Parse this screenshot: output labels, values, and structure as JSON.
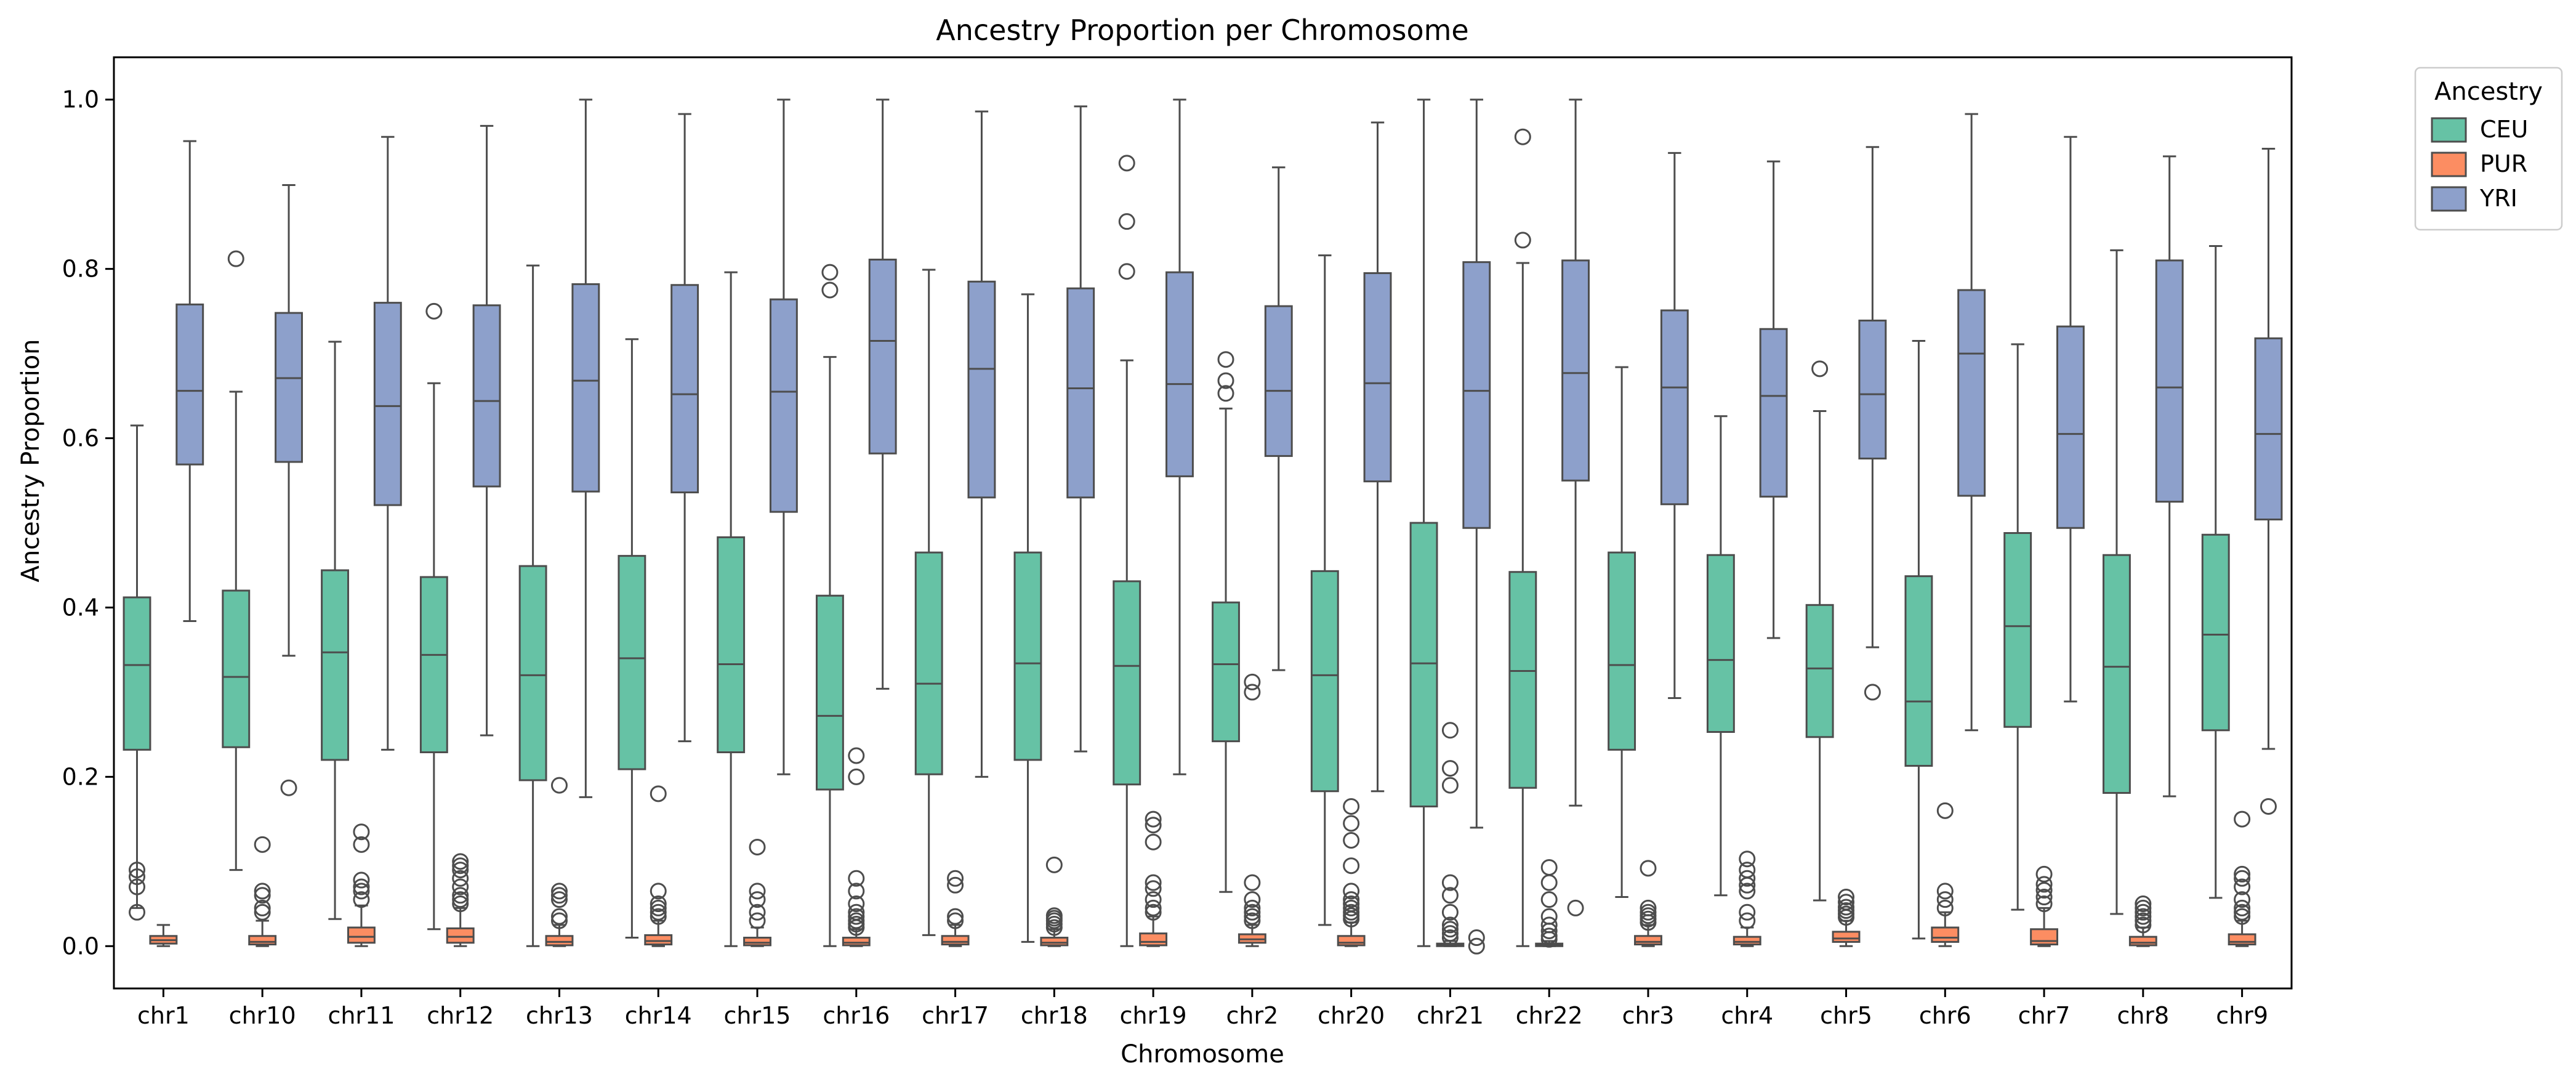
{
  "chart_data": {
    "type": "box",
    "title": "Ancestry Proportion per Chromosome",
    "xlabel": "Chromosome",
    "ylabel": "Ancestry Proportion",
    "ylim": [
      -0.05,
      1.05
    ],
    "yticks": [
      "0.0",
      "0.2",
      "0.4",
      "0.6",
      "0.8",
      "1.0"
    ],
    "grid": false,
    "legend": {
      "title": "Ancestry",
      "placement": "outside-top-right"
    },
    "categories": [
      "chr1",
      "chr10",
      "chr11",
      "chr12",
      "chr13",
      "chr14",
      "chr15",
      "chr16",
      "chr17",
      "chr18",
      "chr19",
      "chr2",
      "chr20",
      "chr21",
      "chr22",
      "chr3",
      "chr4",
      "chr5",
      "chr6",
      "chr7",
      "chr8",
      "chr9"
    ],
    "series": [
      {
        "name": "CEU",
        "color": "#66c2a5",
        "boxes": [
          {
            "lo": 0.045,
            "q1": 0.232,
            "med": 0.332,
            "q3": 0.412,
            "hi": 0.615,
            "out": [
              0.082,
              0.09,
              0.07,
              0.04
            ]
          },
          {
            "lo": 0.09,
            "q1": 0.235,
            "med": 0.318,
            "q3": 0.42,
            "hi": 0.655,
            "out": [
              0.812
            ]
          },
          {
            "lo": 0.032,
            "q1": 0.22,
            "med": 0.347,
            "q3": 0.444,
            "hi": 0.714,
            "out": []
          },
          {
            "lo": 0.02,
            "q1": 0.229,
            "med": 0.344,
            "q3": 0.436,
            "hi": 0.665,
            "out": [
              0.75
            ]
          },
          {
            "lo": 0.0,
            "q1": 0.196,
            "med": 0.32,
            "q3": 0.449,
            "hi": 0.804,
            "out": []
          },
          {
            "lo": 0.01,
            "q1": 0.209,
            "med": 0.34,
            "q3": 0.461,
            "hi": 0.717,
            "out": []
          },
          {
            "lo": 0.0,
            "q1": 0.229,
            "med": 0.333,
            "q3": 0.483,
            "hi": 0.796,
            "out": []
          },
          {
            "lo": 0.0,
            "q1": 0.185,
            "med": 0.272,
            "q3": 0.414,
            "hi": 0.696,
            "out": [
              0.775,
              0.796
            ]
          },
          {
            "lo": 0.013,
            "q1": 0.203,
            "med": 0.31,
            "q3": 0.465,
            "hi": 0.799,
            "out": []
          },
          {
            "lo": 0.005,
            "q1": 0.22,
            "med": 0.334,
            "q3": 0.465,
            "hi": 0.77,
            "out": []
          },
          {
            "lo": 0.0,
            "q1": 0.191,
            "med": 0.331,
            "q3": 0.431,
            "hi": 0.692,
            "out": [
              0.797,
              0.856,
              0.925
            ]
          },
          {
            "lo": 0.064,
            "q1": 0.242,
            "med": 0.333,
            "q3": 0.406,
            "hi": 0.635,
            "out": [
              0.653,
              0.668,
              0.693
            ]
          },
          {
            "lo": 0.025,
            "q1": 0.183,
            "med": 0.32,
            "q3": 0.443,
            "hi": 0.816,
            "out": []
          },
          {
            "lo": 0.0,
            "q1": 0.165,
            "med": 0.334,
            "q3": 0.5,
            "hi": 1.0,
            "out": []
          },
          {
            "lo": 0.0,
            "q1": 0.187,
            "med": 0.325,
            "q3": 0.442,
            "hi": 0.807,
            "out": [
              0.834,
              0.956
            ]
          },
          {
            "lo": 0.058,
            "q1": 0.232,
            "med": 0.332,
            "q3": 0.465,
            "hi": 0.684,
            "out": []
          },
          {
            "lo": 0.06,
            "q1": 0.253,
            "med": 0.338,
            "q3": 0.462,
            "hi": 0.626,
            "out": []
          },
          {
            "lo": 0.054,
            "q1": 0.247,
            "med": 0.328,
            "q3": 0.403,
            "hi": 0.632,
            "out": [
              0.682
            ]
          },
          {
            "lo": 0.009,
            "q1": 0.213,
            "med": 0.289,
            "q3": 0.437,
            "hi": 0.715,
            "out": []
          },
          {
            "lo": 0.043,
            "q1": 0.259,
            "med": 0.378,
            "q3": 0.488,
            "hi": 0.711,
            "out": []
          },
          {
            "lo": 0.038,
            "q1": 0.181,
            "med": 0.33,
            "q3": 0.462,
            "hi": 0.822,
            "out": []
          },
          {
            "lo": 0.057,
            "q1": 0.255,
            "med": 0.368,
            "q3": 0.486,
            "hi": 0.827,
            "out": []
          }
        ]
      },
      {
        "name": "PUR",
        "color": "#fc8d62",
        "boxes": [
          {
            "lo": 0.0,
            "q1": 0.003,
            "med": 0.007,
            "q3": 0.012,
            "hi": 0.025,
            "out": []
          },
          {
            "lo": 0.0,
            "q1": 0.002,
            "med": 0.005,
            "q3": 0.012,
            "hi": 0.03,
            "out": [
              0.04,
              0.045,
              0.06,
              0.065,
              0.12
            ]
          },
          {
            "lo": 0.0,
            "q1": 0.004,
            "med": 0.011,
            "q3": 0.022,
            "hi": 0.048,
            "out": [
              0.055,
              0.065,
              0.07,
              0.078,
              0.12,
              0.135
            ]
          },
          {
            "lo": 0.0,
            "q1": 0.004,
            "med": 0.011,
            "q3": 0.021,
            "hi": 0.045,
            "out": [
              0.05,
              0.055,
              0.06,
              0.07,
              0.08,
              0.09,
              0.095,
              0.1
            ]
          },
          {
            "lo": 0.0,
            "q1": 0.001,
            "med": 0.005,
            "q3": 0.012,
            "hi": 0.025,
            "out": [
              0.03,
              0.035,
              0.055,
              0.06,
              0.065,
              0.19
            ]
          },
          {
            "lo": 0.0,
            "q1": 0.002,
            "med": 0.006,
            "q3": 0.013,
            "hi": 0.03,
            "out": [
              0.035,
              0.04,
              0.045,
              0.05,
              0.065,
              0.18
            ]
          },
          {
            "lo": 0.0,
            "q1": 0.001,
            "med": 0.004,
            "q3": 0.01,
            "hi": 0.022,
            "out": [
              0.03,
              0.04,
              0.055,
              0.065,
              0.117
            ]
          },
          {
            "lo": 0.0,
            "q1": 0.001,
            "med": 0.004,
            "q3": 0.01,
            "hi": 0.02,
            "out": [
              0.022,
              0.026,
              0.03,
              0.035,
              0.04,
              0.05,
              0.065,
              0.08,
              0.2,
              0.225
            ]
          },
          {
            "lo": 0.0,
            "q1": 0.002,
            "med": 0.005,
            "q3": 0.012,
            "hi": 0.025,
            "out": [
              0.03,
              0.035,
              0.072,
              0.08
            ]
          },
          {
            "lo": 0.0,
            "q1": 0.001,
            "med": 0.004,
            "q3": 0.01,
            "hi": 0.02,
            "out": [
              0.022,
              0.026,
              0.03,
              0.033,
              0.036,
              0.096
            ]
          },
          {
            "lo": 0.0,
            "q1": 0.001,
            "med": 0.005,
            "q3": 0.015,
            "hi": 0.035,
            "out": [
              0.04,
              0.045,
              0.055,
              0.068,
              0.075,
              0.123,
              0.143,
              0.15
            ]
          },
          {
            "lo": 0.0,
            "q1": 0.004,
            "med": 0.008,
            "q3": 0.014,
            "hi": 0.025,
            "out": [
              0.3,
              0.312,
              0.03,
              0.035,
              0.04,
              0.045,
              0.055,
              0.075
            ]
          },
          {
            "lo": 0.0,
            "q1": 0.001,
            "med": 0.004,
            "q3": 0.012,
            "hi": 0.028,
            "out": [
              0.032,
              0.036,
              0.04,
              0.045,
              0.05,
              0.055,
              0.065,
              0.095,
              0.125,
              0.145,
              0.165
            ]
          },
          {
            "lo": 0.0,
            "q1": 0.0,
            "med": 0.001,
            "q3": 0.003,
            "hi": 0.006,
            "out": [
              0.01,
              0.015,
              0.02,
              0.025,
              0.04,
              0.06,
              0.075,
              0.19,
              0.21,
              0.255
            ]
          },
          {
            "lo": 0.0,
            "q1": 0.0,
            "med": 0.001,
            "q3": 0.003,
            "hi": 0.006,
            "out": [
              0.008,
              0.012,
              0.018,
              0.025,
              0.035,
              0.055,
              0.075,
              0.093
            ]
          },
          {
            "lo": 0.0,
            "q1": 0.002,
            "med": 0.005,
            "q3": 0.012,
            "hi": 0.025,
            "out": [
              0.028,
              0.032,
              0.036,
              0.04,
              0.045,
              0.092
            ]
          },
          {
            "lo": 0.0,
            "q1": 0.002,
            "med": 0.005,
            "q3": 0.011,
            "hi": 0.022,
            "out": [
              0.03,
              0.04,
              0.065,
              0.072,
              0.08,
              0.09,
              0.103
            ]
          },
          {
            "lo": 0.0,
            "q1": 0.005,
            "med": 0.009,
            "q3": 0.017,
            "hi": 0.03,
            "out": [
              0.034,
              0.038,
              0.042,
              0.046,
              0.052,
              0.058
            ]
          },
          {
            "lo": 0.0,
            "q1": 0.005,
            "med": 0.01,
            "q3": 0.022,
            "hi": 0.04,
            "out": [
              0.045,
              0.055,
              0.065,
              0.16
            ]
          },
          {
            "lo": 0.0,
            "q1": 0.002,
            "med": 0.006,
            "q3": 0.02,
            "hi": 0.045,
            "out": [
              0.05,
              0.058,
              0.066,
              0.073,
              0.085
            ]
          },
          {
            "lo": 0.0,
            "q1": 0.001,
            "med": 0.004,
            "q3": 0.011,
            "hi": 0.022,
            "out": [
              0.025,
              0.03,
              0.035,
              0.04,
              0.045,
              0.05
            ]
          },
          {
            "lo": 0.0,
            "q1": 0.002,
            "med": 0.005,
            "q3": 0.014,
            "hi": 0.03,
            "out": [
              0.035,
              0.04,
              0.045,
              0.055,
              0.07,
              0.08,
              0.085,
              0.15
            ]
          }
        ]
      },
      {
        "name": "YRI",
        "color": "#8da0cb",
        "boxes": [
          {
            "lo": 0.384,
            "q1": 0.569,
            "med": 0.656,
            "q3": 0.758,
            "hi": 0.951,
            "out": []
          },
          {
            "lo": 0.343,
            "q1": 0.572,
            "med": 0.671,
            "q3": 0.748,
            "hi": 0.899,
            "out": [
              0.187
            ]
          },
          {
            "lo": 0.232,
            "q1": 0.521,
            "med": 0.638,
            "q3": 0.76,
            "hi": 0.956,
            "out": []
          },
          {
            "lo": 0.249,
            "q1": 0.543,
            "med": 0.644,
            "q3": 0.757,
            "hi": 0.969,
            "out": []
          },
          {
            "lo": 0.176,
            "q1": 0.537,
            "med": 0.668,
            "q3": 0.782,
            "hi": 1.0,
            "out": []
          },
          {
            "lo": 0.242,
            "q1": 0.536,
            "med": 0.652,
            "q3": 0.781,
            "hi": 0.983,
            "out": []
          },
          {
            "lo": 0.203,
            "q1": 0.513,
            "med": 0.655,
            "q3": 0.764,
            "hi": 1.0,
            "out": []
          },
          {
            "lo": 0.304,
            "q1": 0.582,
            "med": 0.715,
            "q3": 0.811,
            "hi": 1.0,
            "out": []
          },
          {
            "lo": 0.2,
            "q1": 0.53,
            "med": 0.682,
            "q3": 0.785,
            "hi": 0.986,
            "out": []
          },
          {
            "lo": 0.23,
            "q1": 0.53,
            "med": 0.659,
            "q3": 0.777,
            "hi": 0.992,
            "out": []
          },
          {
            "lo": 0.203,
            "q1": 0.555,
            "med": 0.664,
            "q3": 0.796,
            "hi": 1.0,
            "out": []
          },
          {
            "lo": 0.326,
            "q1": 0.579,
            "med": 0.656,
            "q3": 0.756,
            "hi": 0.92,
            "out": []
          },
          {
            "lo": 0.183,
            "q1": 0.549,
            "med": 0.665,
            "q3": 0.795,
            "hi": 0.973,
            "out": []
          },
          {
            "lo": 0.14,
            "q1": 0.494,
            "med": 0.656,
            "q3": 0.808,
            "hi": 1.0,
            "out": [
              0.0,
              0.01
            ]
          },
          {
            "lo": 0.166,
            "q1": 0.55,
            "med": 0.677,
            "q3": 0.81,
            "hi": 1.0,
            "out": [
              0.045
            ]
          },
          {
            "lo": 0.293,
            "q1": 0.522,
            "med": 0.66,
            "q3": 0.751,
            "hi": 0.937,
            "out": []
          },
          {
            "lo": 0.364,
            "q1": 0.531,
            "med": 0.65,
            "q3": 0.729,
            "hi": 0.927,
            "out": []
          },
          {
            "lo": 0.353,
            "q1": 0.576,
            "med": 0.652,
            "q3": 0.739,
            "hi": 0.944,
            "out": [
              0.3
            ]
          },
          {
            "lo": 0.255,
            "q1": 0.532,
            "med": 0.7,
            "q3": 0.775,
            "hi": 0.983,
            "out": []
          },
          {
            "lo": 0.289,
            "q1": 0.494,
            "med": 0.605,
            "q3": 0.732,
            "hi": 0.956,
            "out": []
          },
          {
            "lo": 0.177,
            "q1": 0.525,
            "med": 0.66,
            "q3": 0.81,
            "hi": 0.933,
            "out": []
          },
          {
            "lo": 0.233,
            "q1": 0.504,
            "med": 0.605,
            "q3": 0.718,
            "hi": 0.942,
            "out": [
              0.165
            ]
          }
        ]
      }
    ]
  }
}
